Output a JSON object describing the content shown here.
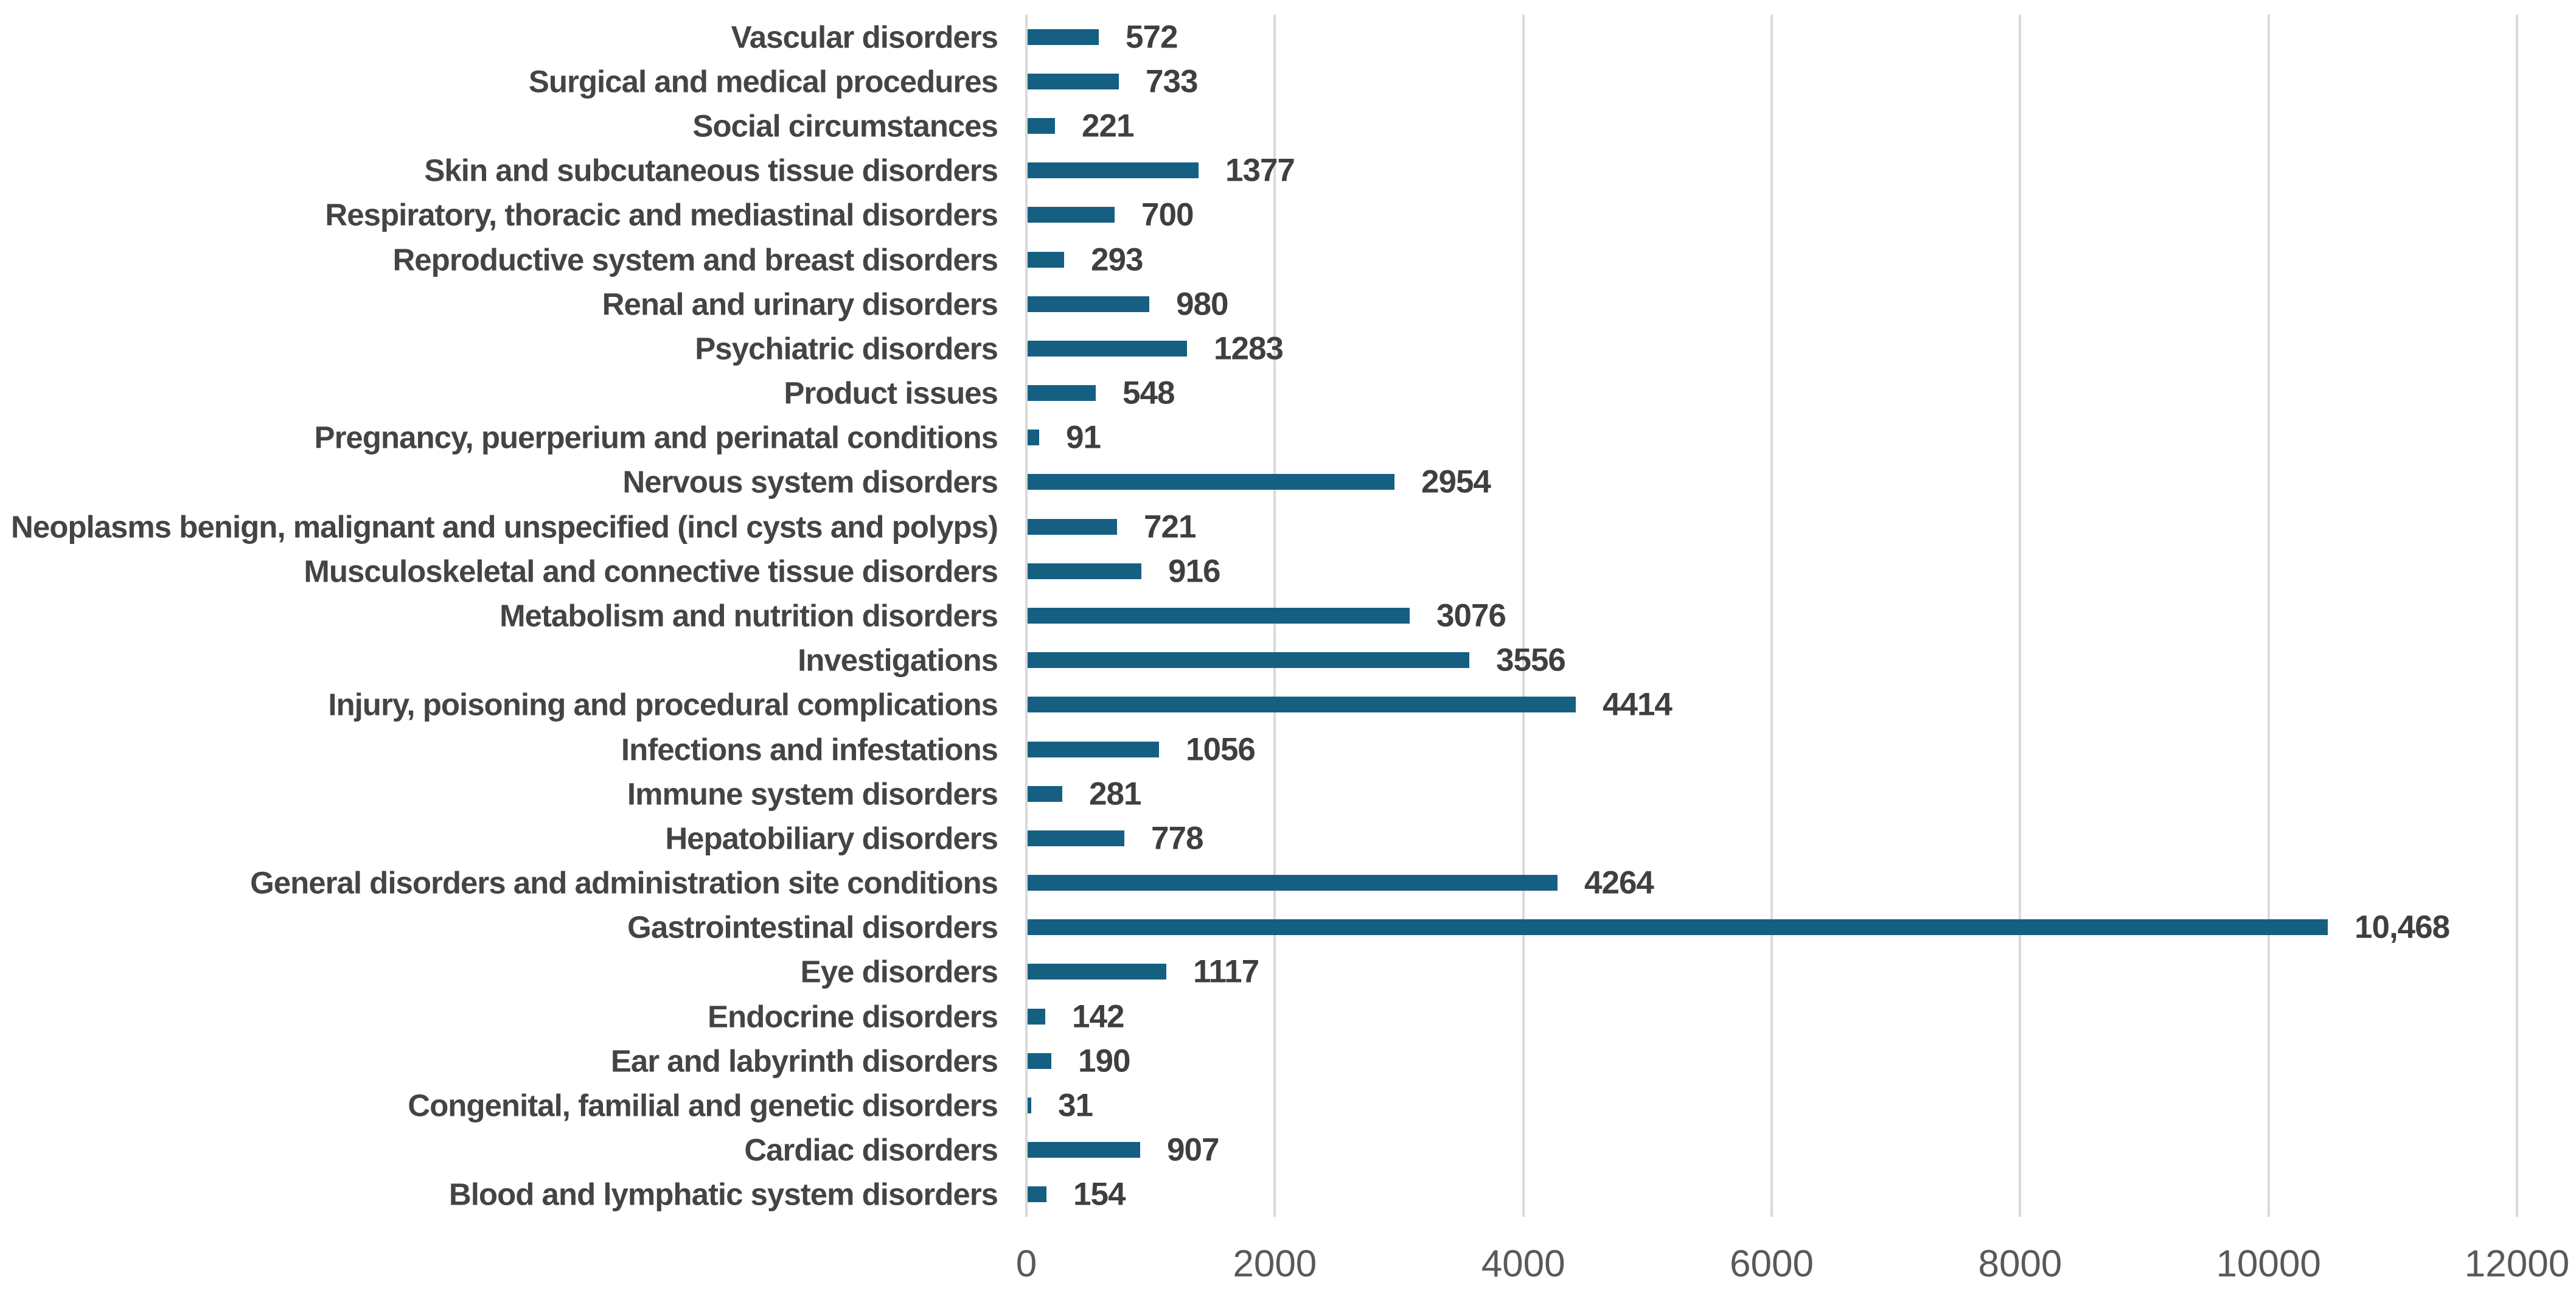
{
  "chart_data": {
    "type": "bar",
    "orientation": "horizontal",
    "title": "",
    "xlabel": "",
    "ylabel": "",
    "categories": [
      "Vascular disorders",
      "Surgical and medical procedures",
      "Social circumstances",
      "Skin and subcutaneous tissue disorders",
      "Respiratory, thoracic and mediastinal disorders",
      "Reproductive system and breast disorders",
      "Renal and urinary disorders",
      "Psychiatric disorders",
      "Product issues",
      "Pregnancy, puerperium and perinatal conditions",
      "Nervous system disorders",
      "Neoplasms benign, malignant and unspecified (incl cysts and polyps)",
      "Musculoskeletal and connective tissue disorders",
      "Metabolism and nutrition disorders",
      "Investigations",
      "Injury, poisoning and procedural complications",
      "Infections and infestations",
      "Immune system disorders",
      "Hepatobiliary disorders",
      "General disorders and administration site conditions",
      "Gastrointestinal disorders",
      "Eye disorders",
      "Endocrine disorders",
      "Ear and labyrinth disorders",
      "Congenital, familial and genetic disorders",
      "Cardiac disorders",
      "Blood and lymphatic system disorders"
    ],
    "values": [
      572,
      733,
      221,
      1377,
      700,
      293,
      980,
      1283,
      548,
      91,
      2954,
      721,
      916,
      3076,
      3556,
      4414,
      1056,
      281,
      778,
      4264,
      10468,
      1117,
      142,
      190,
      31,
      907,
      154
    ],
    "value_labels": [
      "572",
      "733",
      "221",
      "1377",
      "700",
      "293",
      "980",
      "1283",
      "548",
      "91",
      "2954",
      "721",
      "916",
      "3076",
      "3556",
      "4414",
      "1056",
      "281",
      "778",
      "4264",
      "10,468",
      "1117",
      "142",
      "190",
      "31",
      "907",
      "154"
    ],
    "xlim": [
      0,
      12000
    ],
    "x_ticks": [
      0,
      2000,
      4000,
      6000,
      8000,
      10000,
      12000
    ],
    "x_tick_labels": [
      "0",
      "2000",
      "4000",
      "6000",
      "8000",
      "10000",
      "12000"
    ],
    "grid": true,
    "legend_position": "none",
    "colors": {
      "bar": "#156082",
      "gridline": "#D9D9D9",
      "category_label": "#444444",
      "value_label": "#3f3f3f",
      "axis_label": "#595959",
      "background": "#ffffff"
    }
  }
}
